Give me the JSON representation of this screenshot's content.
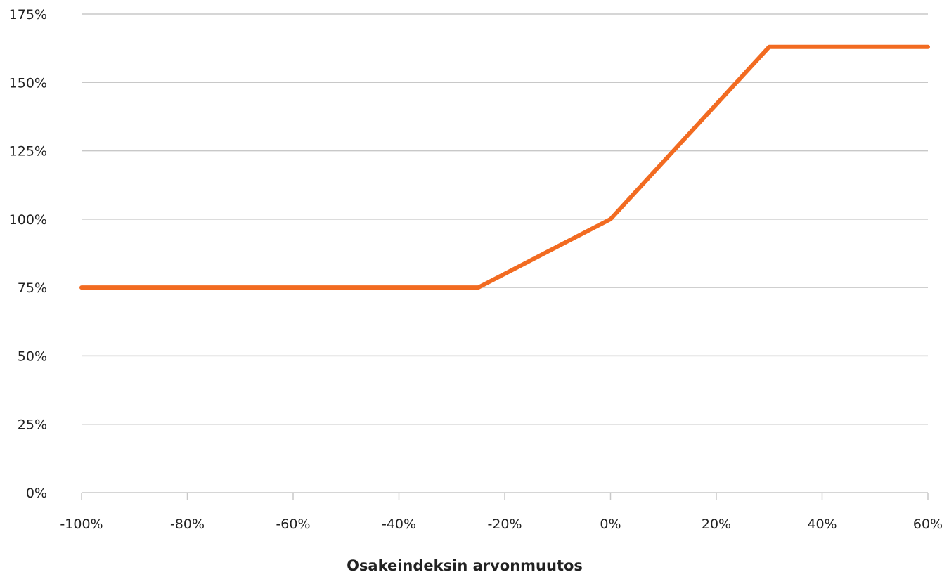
{
  "chart_data": {
    "type": "line",
    "title": "",
    "xlabel": "Osakeindeksin arvonmuutos",
    "ylabel": "",
    "x_ticks": [
      -100,
      -80,
      -60,
      -40,
      -20,
      0,
      20,
      40,
      60
    ],
    "x_tick_labels": [
      "-100%",
      "-80%",
      "-60%",
      "-40%",
      "-20%",
      "0%",
      "20%",
      "40%",
      "60%"
    ],
    "y_ticks": [
      0,
      25,
      50,
      75,
      100,
      125,
      150,
      175
    ],
    "y_tick_labels": [
      "0%",
      "25%",
      "50%",
      "75%",
      "100%",
      "125%",
      "150%",
      "175%"
    ],
    "xlim": [
      -100,
      60
    ],
    "ylim": [
      0,
      175
    ],
    "grid": "horizontal",
    "legend": "none",
    "series": [
      {
        "color": "#f26b21",
        "x": [
          -100,
          -25,
          0,
          30,
          60
        ],
        "y": [
          75,
          75,
          100,
          163,
          163
        ]
      }
    ]
  },
  "colors": {
    "grid": "#c8c8c8",
    "axis": "#c8c8c8",
    "text": "#222222"
  }
}
